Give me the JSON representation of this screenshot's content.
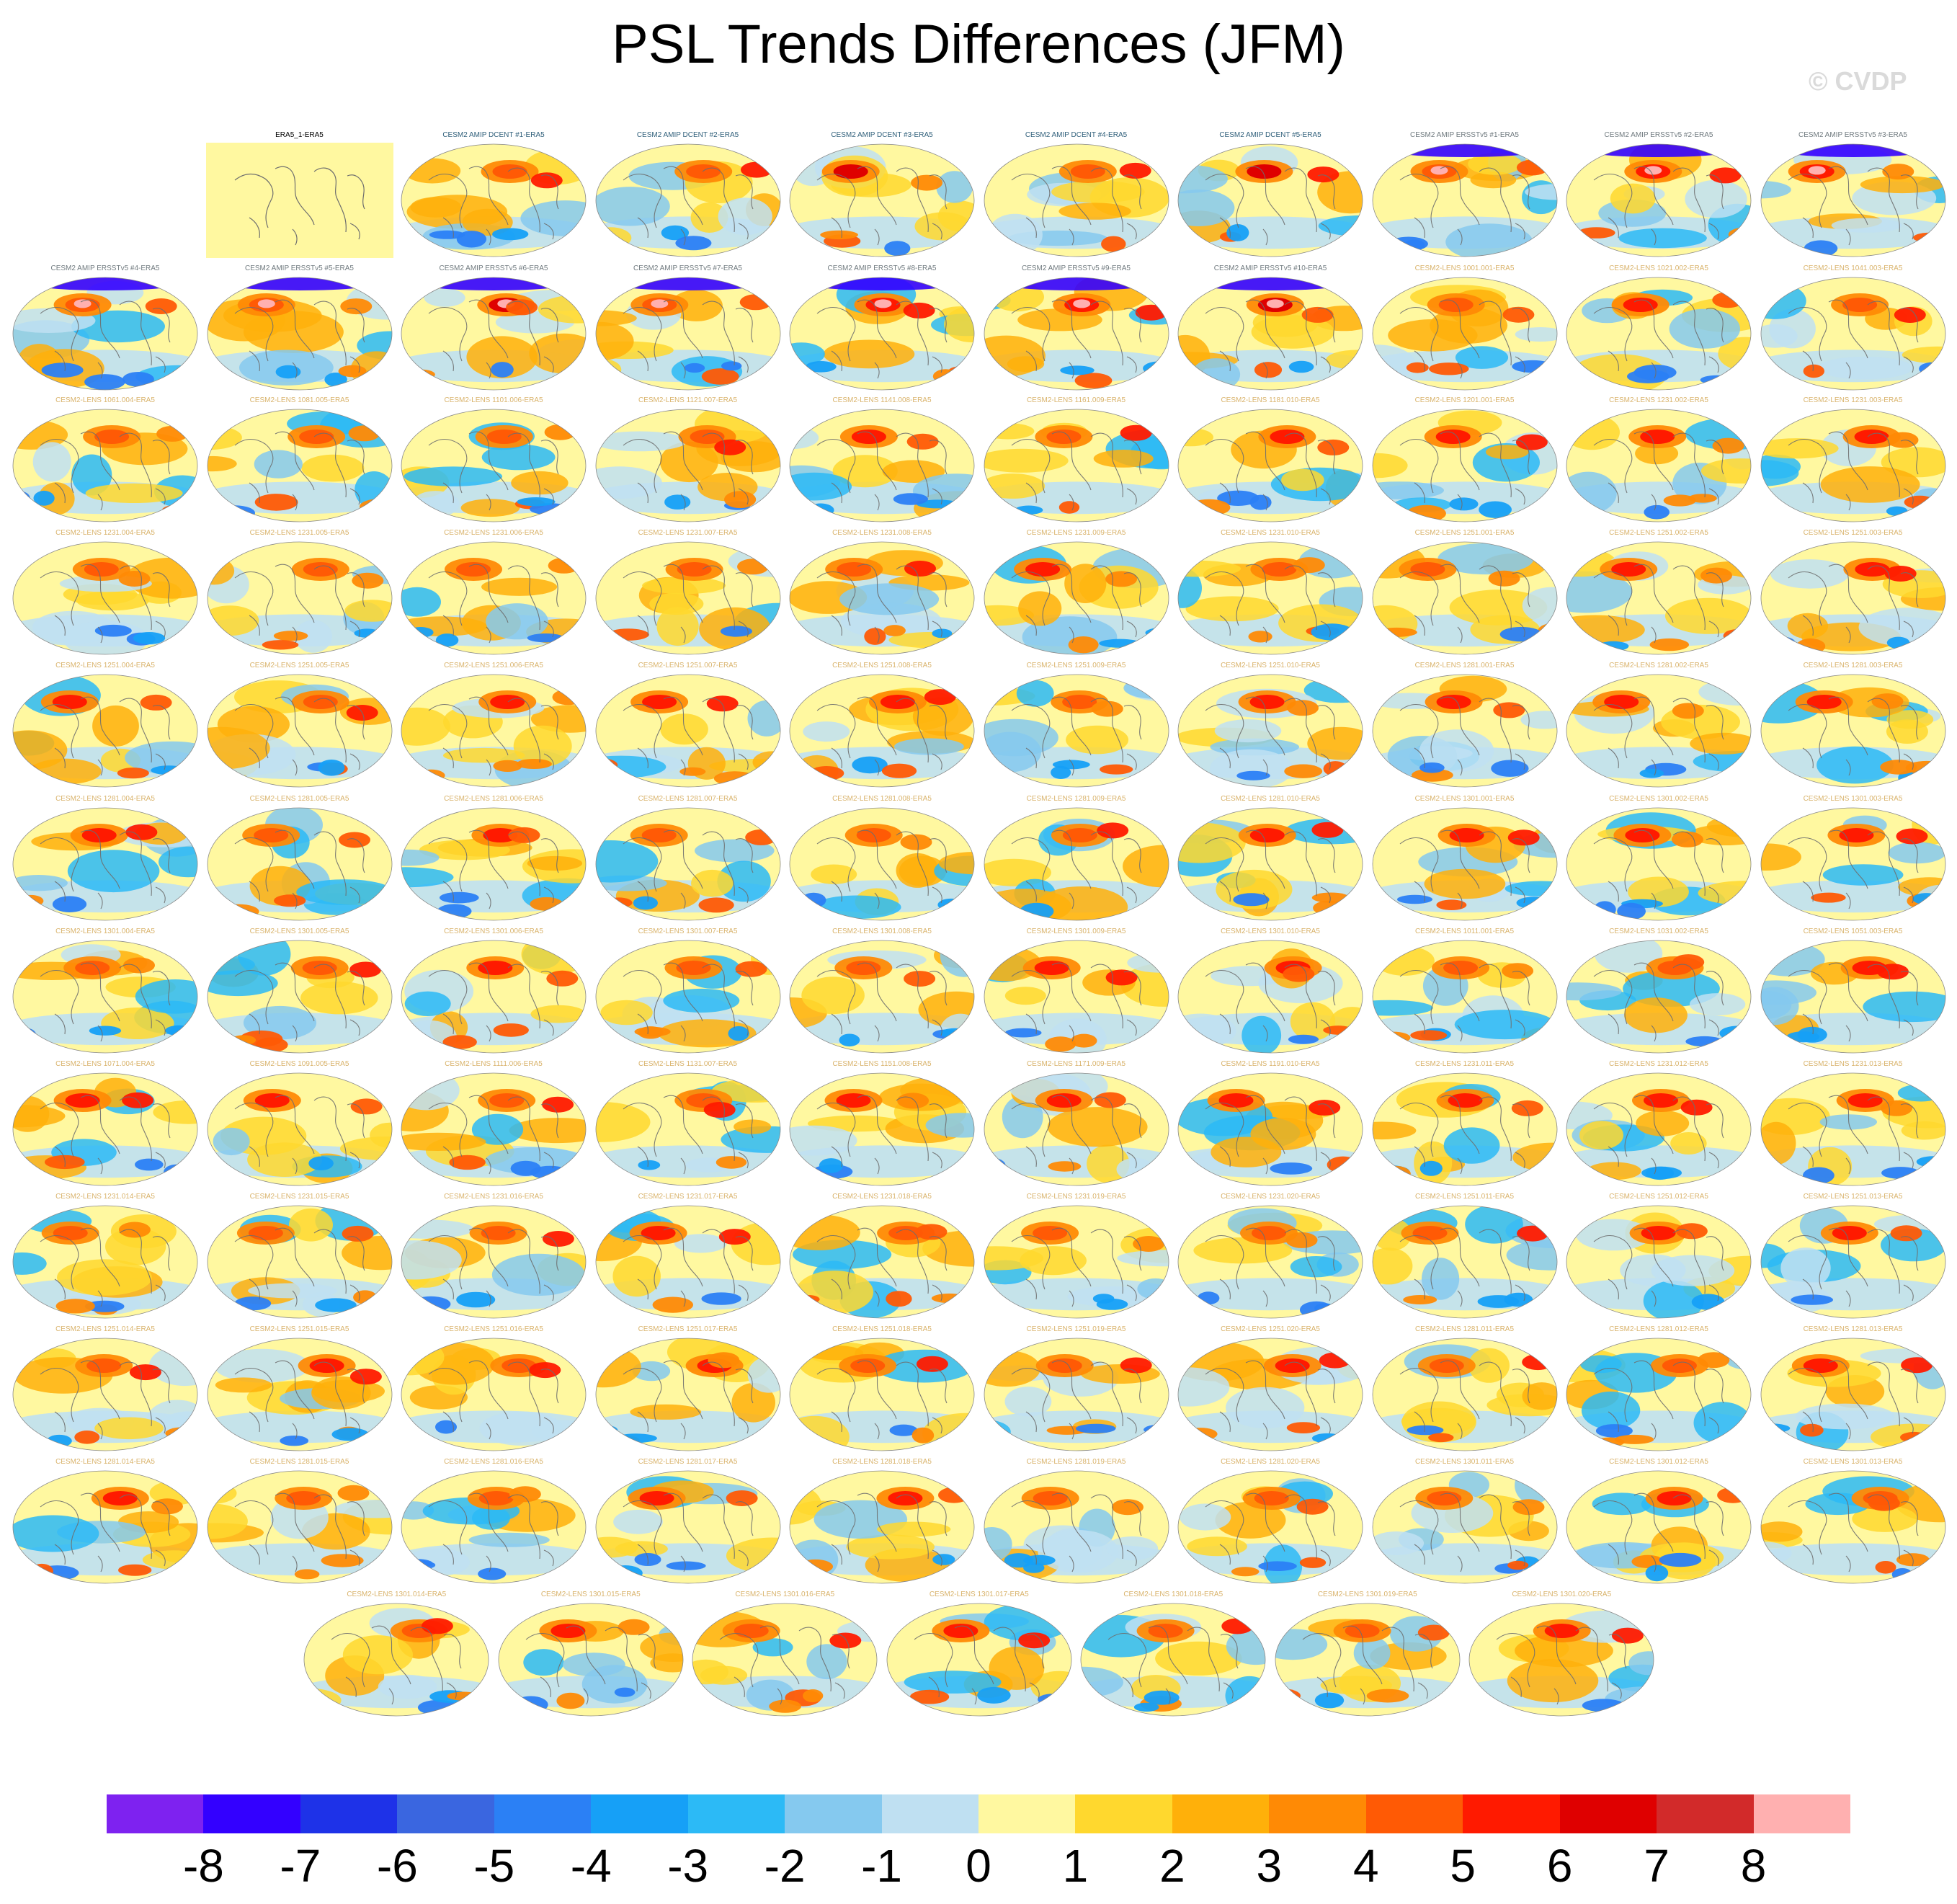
{
  "title": "PSL Trends Differences (JFM)",
  "watermark": "© CVDP",
  "colors": {
    "amip_dcent_title": "#2f5f7a",
    "amip_ersst_title": "#707a7f",
    "lens_title": "#d9b36b",
    "obs_title": "#000000",
    "obs_fill": "#fff8a0",
    "coast": "#6e6e6e"
  },
  "panels": [
    {
      "title": "ERA5_1-ERA5",
      "kind": "obs"
    },
    {
      "title": "CESM2 AMIP DCENT #1-ERA5",
      "kind": "dcent"
    },
    {
      "title": "CESM2 AMIP DCENT #2-ERA5",
      "kind": "dcent"
    },
    {
      "title": "CESM2 AMIP DCENT #3-ERA5",
      "kind": "dcent"
    },
    {
      "title": "CESM2 AMIP DCENT #4-ERA5",
      "kind": "dcent"
    },
    {
      "title": "CESM2 AMIP DCENT #5-ERA5",
      "kind": "dcent"
    },
    {
      "title": "CESM2 AMIP ERSSTv5 #1-ERA5",
      "kind": "ersst"
    },
    {
      "title": "CESM2 AMIP ERSSTv5 #2-ERA5",
      "kind": "ersst"
    },
    {
      "title": "CESM2 AMIP ERSSTv5 #3-ERA5",
      "kind": "ersst"
    },
    {
      "title": "CESM2 AMIP ERSSTv5 #4-ERA5",
      "kind": "ersst"
    },
    {
      "title": "CESM2 AMIP ERSSTv5 #5-ERA5",
      "kind": "ersst"
    },
    {
      "title": "CESM2 AMIP ERSSTv5 #6-ERA5",
      "kind": "ersst"
    },
    {
      "title": "CESM2 AMIP ERSSTv5 #7-ERA5",
      "kind": "ersst"
    },
    {
      "title": "CESM2 AMIP ERSSTv5 #8-ERA5",
      "kind": "ersst"
    },
    {
      "title": "CESM2 AMIP ERSSTv5 #9-ERA5",
      "kind": "ersst"
    },
    {
      "title": "CESM2 AMIP ERSSTv5 #10-ERA5",
      "kind": "ersst"
    },
    {
      "title": "CESM2-LENS 1001.001-ERA5",
      "kind": "lens"
    },
    {
      "title": "CESM2-LENS 1021.002-ERA5",
      "kind": "lens"
    },
    {
      "title": "CESM2-LENS 1041.003-ERA5",
      "kind": "lens"
    },
    {
      "title": "CESM2-LENS 1061.004-ERA5",
      "kind": "lens"
    },
    {
      "title": "CESM2-LENS 1081.005-ERA5",
      "kind": "lens"
    },
    {
      "title": "CESM2-LENS 1101.006-ERA5",
      "kind": "lens"
    },
    {
      "title": "CESM2-LENS 1121.007-ERA5",
      "kind": "lens"
    },
    {
      "title": "CESM2-LENS 1141.008-ERA5",
      "kind": "lens"
    },
    {
      "title": "CESM2-LENS 1161.009-ERA5",
      "kind": "lens"
    },
    {
      "title": "CESM2-LENS 1181.010-ERA5",
      "kind": "lens"
    },
    {
      "title": "CESM2-LENS 1201.001-ERA5",
      "kind": "lens"
    },
    {
      "title": "CESM2-LENS 1231.002-ERA5",
      "kind": "lens"
    },
    {
      "title": "CESM2-LENS 1231.003-ERA5",
      "kind": "lens"
    },
    {
      "title": "CESM2-LENS 1231.004-ERA5",
      "kind": "lens"
    },
    {
      "title": "CESM2-LENS 1231.005-ERA5",
      "kind": "lens"
    },
    {
      "title": "CESM2-LENS 1231.006-ERA5",
      "kind": "lens"
    },
    {
      "title": "CESM2-LENS 1231.007-ERA5",
      "kind": "lens"
    },
    {
      "title": "CESM2-LENS 1231.008-ERA5",
      "kind": "lens"
    },
    {
      "title": "CESM2-LENS 1231.009-ERA5",
      "kind": "lens"
    },
    {
      "title": "CESM2-LENS 1231.010-ERA5",
      "kind": "lens"
    },
    {
      "title": "CESM2-LENS 1251.001-ERA5",
      "kind": "lens"
    },
    {
      "title": "CESM2-LENS 1251.002-ERA5",
      "kind": "lens"
    },
    {
      "title": "CESM2-LENS 1251.003-ERA5",
      "kind": "lens"
    },
    {
      "title": "CESM2-LENS 1251.004-ERA5",
      "kind": "lens"
    },
    {
      "title": "CESM2-LENS 1251.005-ERA5",
      "kind": "lens"
    },
    {
      "title": "CESM2-LENS 1251.006-ERA5",
      "kind": "lens"
    },
    {
      "title": "CESM2-LENS 1251.007-ERA5",
      "kind": "lens"
    },
    {
      "title": "CESM2-LENS 1251.008-ERA5",
      "kind": "lens"
    },
    {
      "title": "CESM2-LENS 1251.009-ERA5",
      "kind": "lens"
    },
    {
      "title": "CESM2-LENS 1251.010-ERA5",
      "kind": "lens"
    },
    {
      "title": "CESM2-LENS 1281.001-ERA5",
      "kind": "lens"
    },
    {
      "title": "CESM2-LENS 1281.002-ERA5",
      "kind": "lens"
    },
    {
      "title": "CESM2-LENS 1281.003-ERA5",
      "kind": "lens"
    },
    {
      "title": "CESM2-LENS 1281.004-ERA5",
      "kind": "lens"
    },
    {
      "title": "CESM2-LENS 1281.005-ERA5",
      "kind": "lens"
    },
    {
      "title": "CESM2-LENS 1281.006-ERA5",
      "kind": "lens"
    },
    {
      "title": "CESM2-LENS 1281.007-ERA5",
      "kind": "lens"
    },
    {
      "title": "CESM2-LENS 1281.008-ERA5",
      "kind": "lens"
    },
    {
      "title": "CESM2-LENS 1281.009-ERA5",
      "kind": "lens"
    },
    {
      "title": "CESM2-LENS 1281.010-ERA5",
      "kind": "lens"
    },
    {
      "title": "CESM2-LENS 1301.001-ERA5",
      "kind": "lens"
    },
    {
      "title": "CESM2-LENS 1301.002-ERA5",
      "kind": "lens"
    },
    {
      "title": "CESM2-LENS 1301.003-ERA5",
      "kind": "lens"
    },
    {
      "title": "CESM2-LENS 1301.004-ERA5",
      "kind": "lens"
    },
    {
      "title": "CESM2-LENS 1301.005-ERA5",
      "kind": "lens"
    },
    {
      "title": "CESM2-LENS 1301.006-ERA5",
      "kind": "lens"
    },
    {
      "title": "CESM2-LENS 1301.007-ERA5",
      "kind": "lens"
    },
    {
      "title": "CESM2-LENS 1301.008-ERA5",
      "kind": "lens"
    },
    {
      "title": "CESM2-LENS 1301.009-ERA5",
      "kind": "lens"
    },
    {
      "title": "CESM2-LENS 1301.010-ERA5",
      "kind": "lens"
    },
    {
      "title": "CESM2-LENS 1011.001-ERA5",
      "kind": "lens"
    },
    {
      "title": "CESM2-LENS 1031.002-ERA5",
      "kind": "lens"
    },
    {
      "title": "CESM2-LENS 1051.003-ERA5",
      "kind": "lens"
    },
    {
      "title": "CESM2-LENS 1071.004-ERA5",
      "kind": "lens"
    },
    {
      "title": "CESM2-LENS 1091.005-ERA5",
      "kind": "lens"
    },
    {
      "title": "CESM2-LENS 1111.006-ERA5",
      "kind": "lens"
    },
    {
      "title": "CESM2-LENS 1131.007-ERA5",
      "kind": "lens"
    },
    {
      "title": "CESM2-LENS 1151.008-ERA5",
      "kind": "lens"
    },
    {
      "title": "CESM2-LENS 1171.009-ERA5",
      "kind": "lens"
    },
    {
      "title": "CESM2-LENS 1191.010-ERA5",
      "kind": "lens"
    },
    {
      "title": "CESM2-LENS 1231.011-ERA5",
      "kind": "lens"
    },
    {
      "title": "CESM2-LENS 1231.012-ERA5",
      "kind": "lens"
    },
    {
      "title": "CESM2-LENS 1231.013-ERA5",
      "kind": "lens"
    },
    {
      "title": "CESM2-LENS 1231.014-ERA5",
      "kind": "lens"
    },
    {
      "title": "CESM2-LENS 1231.015-ERA5",
      "kind": "lens"
    },
    {
      "title": "CESM2-LENS 1231.016-ERA5",
      "kind": "lens"
    },
    {
      "title": "CESM2-LENS 1231.017-ERA5",
      "kind": "lens"
    },
    {
      "title": "CESM2-LENS 1231.018-ERA5",
      "kind": "lens"
    },
    {
      "title": "CESM2-LENS 1231.019-ERA5",
      "kind": "lens"
    },
    {
      "title": "CESM2-LENS 1231.020-ERA5",
      "kind": "lens"
    },
    {
      "title": "CESM2-LENS 1251.011-ERA5",
      "kind": "lens"
    },
    {
      "title": "CESM2-LENS 1251.012-ERA5",
      "kind": "lens"
    },
    {
      "title": "CESM2-LENS 1251.013-ERA5",
      "kind": "lens"
    },
    {
      "title": "CESM2-LENS 1251.014-ERA5",
      "kind": "lens"
    },
    {
      "title": "CESM2-LENS 1251.015-ERA5",
      "kind": "lens"
    },
    {
      "title": "CESM2-LENS 1251.016-ERA5",
      "kind": "lens"
    },
    {
      "title": "CESM2-LENS 1251.017-ERA5",
      "kind": "lens"
    },
    {
      "title": "CESM2-LENS 1251.018-ERA5",
      "kind": "lens"
    },
    {
      "title": "CESM2-LENS 1251.019-ERA5",
      "kind": "lens"
    },
    {
      "title": "CESM2-LENS 1251.020-ERA5",
      "kind": "lens"
    },
    {
      "title": "CESM2-LENS 1281.011-ERA5",
      "kind": "lens"
    },
    {
      "title": "CESM2-LENS 1281.012-ERA5",
      "kind": "lens"
    },
    {
      "title": "CESM2-LENS 1281.013-ERA5",
      "kind": "lens"
    },
    {
      "title": "CESM2-LENS 1281.014-ERA5",
      "kind": "lens"
    },
    {
      "title": "CESM2-LENS 1281.015-ERA5",
      "kind": "lens"
    },
    {
      "title": "CESM2-LENS 1281.016-ERA5",
      "kind": "lens"
    },
    {
      "title": "CESM2-LENS 1281.017-ERA5",
      "kind": "lens"
    },
    {
      "title": "CESM2-LENS 1281.018-ERA5",
      "kind": "lens"
    },
    {
      "title": "CESM2-LENS 1281.019-ERA5",
      "kind": "lens"
    },
    {
      "title": "CESM2-LENS 1281.020-ERA5",
      "kind": "lens"
    },
    {
      "title": "CESM2-LENS 1301.011-ERA5",
      "kind": "lens"
    },
    {
      "title": "CESM2-LENS 1301.012-ERA5",
      "kind": "lens"
    },
    {
      "title": "CESM2-LENS 1301.013-ERA5",
      "kind": "lens"
    },
    {
      "title": "CESM2-LENS 1301.014-ERA5",
      "kind": "lens"
    },
    {
      "title": "CESM2-LENS 1301.015-ERA5",
      "kind": "lens"
    },
    {
      "title": "CESM2-LENS 1301.016-ERA5",
      "kind": "lens"
    },
    {
      "title": "CESM2-LENS 1301.017-ERA5",
      "kind": "lens"
    },
    {
      "title": "CESM2-LENS 1301.018-ERA5",
      "kind": "lens"
    },
    {
      "title": "CESM2-LENS 1301.019-ERA5",
      "kind": "lens"
    },
    {
      "title": "CESM2-LENS 1301.020-ERA5",
      "kind": "lens"
    }
  ],
  "colorbar": {
    "colors": [
      "#7e22f0",
      "#3300ff",
      "#1e32e8",
      "#3a66e0",
      "#2b80f5",
      "#16a0f7",
      "#2cbaf6",
      "#85c9ef",
      "#bfe0f2",
      "#fff8a0",
      "#ffd82e",
      "#ffb00a",
      "#ff8a05",
      "#ff5a05",
      "#ff1a00",
      "#df0000",
      "#d22a2a",
      "#ffb0b0"
    ],
    "labels": [
      "-8",
      "-7",
      "-6",
      "-5",
      "-4",
      "-3",
      "-2",
      "-1",
      "0",
      "1",
      "2",
      "3",
      "4",
      "5",
      "6",
      "7",
      "8"
    ]
  }
}
